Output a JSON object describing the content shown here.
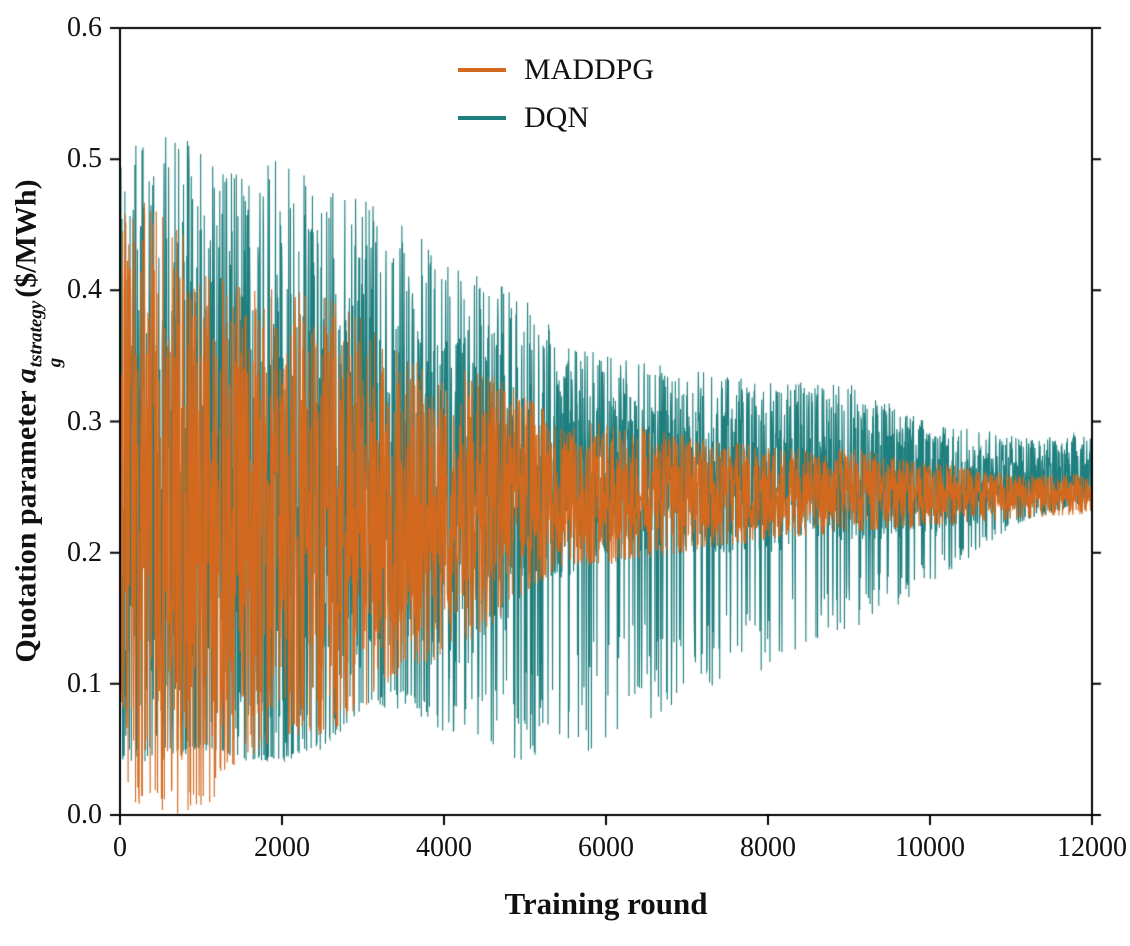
{
  "figure": {
    "background": "#ffffff",
    "frame_color": "#000000",
    "text_color": "#111111"
  },
  "chart_data": {
    "type": "line",
    "title": "",
    "xlabel": "Training round",
    "ylabel": "Quotation parameter a_g^{tstrategy} ($/MWh)",
    "ylabel_parts": {
      "prefix": "Quotation parameter ",
      "var": "a",
      "sup": "tstrategy",
      "sub": "g",
      "suffix": "($/MWh)"
    },
    "xlim": [
      0,
      12000
    ],
    "ylim": [
      0.0,
      0.6
    ],
    "xticks": [
      0,
      2000,
      4000,
      6000,
      8000,
      10000,
      12000
    ],
    "xtick_labels": [
      "0",
      "2000",
      "4000",
      "6000",
      "8000",
      "10000",
      "12000"
    ],
    "yticks": [
      0.0,
      0.1,
      0.2,
      0.3,
      0.4,
      0.5,
      0.6
    ],
    "ytick_labels": [
      "0.0",
      "0.1",
      "0.2",
      "0.3",
      "0.4",
      "0.5",
      "0.6"
    ],
    "grid": false,
    "legend": {
      "position": "upper-center",
      "entries": [
        "MADDPG",
        "DQN"
      ]
    },
    "noise_profile": "dense stochastic oscillations within shrinking envelopes converging near 0.25",
    "envelope_x": [
      0,
      500,
      1000,
      1500,
      2000,
      2500,
      3000,
      3500,
      4000,
      4500,
      5000,
      5500,
      6000,
      7000,
      8000,
      9000,
      10000,
      11000,
      12000
    ],
    "series": [
      {
        "name": "MADDPG",
        "color": "#d2691e",
        "seed": 202,
        "spike_probability": 0.1,
        "envelope_max": [
          0.47,
          0.47,
          0.42,
          0.41,
          0.4,
          0.4,
          0.38,
          0.35,
          0.34,
          0.34,
          0.32,
          0.3,
          0.3,
          0.29,
          0.28,
          0.28,
          0.27,
          0.26,
          0.26
        ],
        "dense_min": [
          0.04,
          0.03,
          0.05,
          0.07,
          0.08,
          0.08,
          0.1,
          0.13,
          0.14,
          0.16,
          0.19,
          0.2,
          0.2,
          0.21,
          0.215,
          0.22,
          0.225,
          0.23,
          0.23
        ],
        "spike_min": [
          0.01,
          0.0,
          0.0,
          0.04,
          0.06,
          0.06,
          0.08,
          0.11,
          0.12,
          0.14,
          0.17,
          0.19,
          0.19,
          0.2,
          0.21,
          0.215,
          0.22,
          0.225,
          0.23
        ],
        "converges_to": 0.245
      },
      {
        "name": "DQN",
        "color": "#1e7f7e",
        "seed": 101,
        "spike_probability": 0.12,
        "envelope_max": [
          0.51,
          0.52,
          0.52,
          0.5,
          0.5,
          0.48,
          0.47,
          0.45,
          0.43,
          0.41,
          0.4,
          0.36,
          0.35,
          0.34,
          0.33,
          0.33,
          0.3,
          0.29,
          0.29
        ],
        "dense_min": [
          0.06,
          0.06,
          0.06,
          0.05,
          0.05,
          0.06,
          0.1,
          0.11,
          0.1,
          0.12,
          0.16,
          0.18,
          0.2,
          0.2,
          0.2,
          0.21,
          0.21,
          0.23,
          0.24
        ],
        "spike_min": [
          0.04,
          0.04,
          0.05,
          0.04,
          0.04,
          0.05,
          0.08,
          0.08,
          0.06,
          0.05,
          0.04,
          0.04,
          0.05,
          0.09,
          0.11,
          0.14,
          0.17,
          0.22,
          0.24
        ],
        "converges_to": 0.27
      }
    ],
    "draw_order": [
      "DQN",
      "MADDPG"
    ]
  }
}
